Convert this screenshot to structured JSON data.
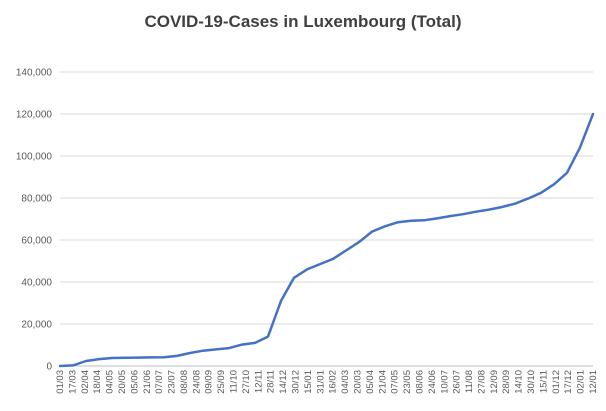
{
  "chart_data": {
    "type": "line",
    "title": "COVID-19-Cases in Luxembourg (Total)",
    "xlabel": "",
    "ylabel": "",
    "ylim": [
      0,
      140000
    ],
    "yticks": [
      "0",
      "20,000",
      "40,000",
      "60,000",
      "80,000",
      "100,000",
      "120,000",
      "140,000"
    ],
    "xticks": [
      "01/03",
      "17/03",
      "02/04",
      "18/04",
      "04/05",
      "20/05",
      "05/06",
      "21/06",
      "07/07",
      "23/07",
      "08/08",
      "24/08",
      "09/09",
      "25/09",
      "11/10",
      "27/10",
      "12/11",
      "28/11",
      "14/12",
      "30/12",
      "15/01",
      "31/01",
      "16/02",
      "04/03",
      "20/03",
      "05/04",
      "21/04",
      "07/05",
      "23/05",
      "08/06",
      "24/06",
      "10/07",
      "26/07",
      "11/08",
      "27/08",
      "12/09",
      "28/09",
      "14/10",
      "30/10",
      "15/11",
      "01/12",
      "17/12",
      "02/01",
      "12/01"
    ],
    "grid": true,
    "legend": "none",
    "color": "#4472c4",
    "series": [
      {
        "values": [
          0,
          300,
          2400,
          3300,
          3800,
          3900,
          4000,
          4100,
          4200,
          4800,
          6200,
          7300,
          7900,
          8500,
          10200,
          11000,
          14000,
          31000,
          42000,
          46000,
          48500,
          51000,
          55000,
          59000,
          64000,
          66500,
          68500,
          69200,
          69400,
          70300,
          71400,
          72300,
          73500,
          74500,
          75700,
          77300,
          79700,
          82500,
          86500,
          92000,
          104000,
          120000
        ]
      }
    ]
  }
}
